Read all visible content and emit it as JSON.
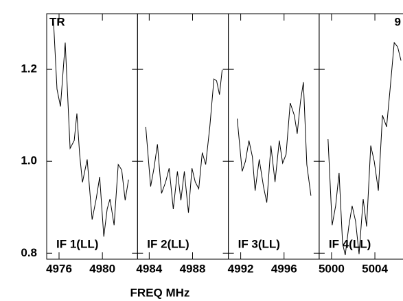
{
  "chart_data": {
    "type": "line",
    "xlabel": "FREQ MHz",
    "ylim": [
      0.787,
      1.321
    ],
    "yticks": [
      0.8,
      {
        "value": 1,
        "label": "1.0"
      },
      1.2
    ],
    "panels": [
      {
        "label": "IF 1(LL)",
        "annotation": "TR",
        "xlim": [
          4974.86,
          4983.24
        ],
        "xticks": [
          4976,
          4980
        ],
        "x": [
          4975.49,
          4975.81,
          4976.13,
          4976.57,
          4977.02,
          4977.4,
          4977.65,
          4977.9,
          4978.16,
          4978.6,
          4979.05,
          4979.43,
          4979.75,
          4980.13,
          4980.44,
          4980.7,
          4981.08,
          4981.46,
          4981.78,
          4982.1,
          4982.41
        ],
        "values": [
          1.306,
          1.157,
          1.119,
          1.258,
          1.028,
          1.045,
          1.104,
          1.015,
          0.954,
          1.004,
          0.873,
          0.918,
          0.966,
          0.836,
          0.896,
          0.918,
          0.861,
          0.993,
          0.981,
          0.915,
          0.96
        ]
      },
      {
        "label": "IF 2(LL)",
        "xlim": [
          4982.92,
          4991.3
        ],
        "xticks": [
          4984,
          4988
        ],
        "x": [
          4983.68,
          4984.13,
          4984.44,
          4984.76,
          4985.14,
          4985.52,
          4985.84,
          4986.22,
          4986.6,
          4986.92,
          4987.24,
          4987.62,
          4987.94,
          4988.25,
          4988.57,
          4988.89,
          4989.21,
          4989.59,
          4989.97,
          4990.22,
          4990.48,
          4990.73
        ],
        "values": [
          1.075,
          0.945,
          0.985,
          1.037,
          0.93,
          0.955,
          0.985,
          0.896,
          0.978,
          0.915,
          0.978,
          0.888,
          0.985,
          0.955,
          0.94,
          1.019,
          0.993,
          1.075,
          1.179,
          1.175,
          1.145,
          1.199
        ]
      },
      {
        "label": "IF 3(LL)",
        "xlim": [
          4990.86,
          4999.24
        ],
        "xticks": [
          4992,
          4996
        ],
        "x": [
          4991.68,
          4992.13,
          4992.44,
          4992.76,
          4993.08,
          4993.33,
          4993.71,
          4994.1,
          4994.41,
          4994.79,
          4995.17,
          4995.56,
          4995.87,
          4996.19,
          4996.57,
          4996.95,
          4997.21,
          4997.52,
          4997.78,
          4998.1,
          4998.48
        ],
        "values": [
          1.093,
          0.978,
          1.0,
          1.045,
          1.01,
          0.936,
          1.004,
          0.945,
          0.91,
          1.034,
          0.955,
          1.045,
          0.996,
          1.015,
          1.127,
          1.1,
          1.06,
          1.13,
          1.172,
          0.993,
          0.925
        ]
      },
      {
        "label": "IF 4(LL)",
        "annotation": "9",
        "xlim": [
          4998.86,
          5007.24
        ],
        "xticks": [
          5000,
          5004
        ],
        "x": [
          4999.68,
          5000.06,
          5000.38,
          5000.7,
          5001.02,
          5001.27,
          5001.59,
          5001.9,
          5002.22,
          5002.54,
          5002.92,
          5003.24,
          5003.62,
          5003.94,
          5004.32,
          5004.7,
          5005.08,
          5005.4,
          5005.78,
          5006.1,
          5006.41
        ],
        "values": [
          1.048,
          0.861,
          0.903,
          0.975,
          0.821,
          0.796,
          0.858,
          0.903,
          0.87,
          0.798,
          0.918,
          0.858,
          1.034,
          1.0,
          0.936,
          1.1,
          1.075,
          1.157,
          1.258,
          1.249,
          1.219
        ]
      }
    ]
  }
}
